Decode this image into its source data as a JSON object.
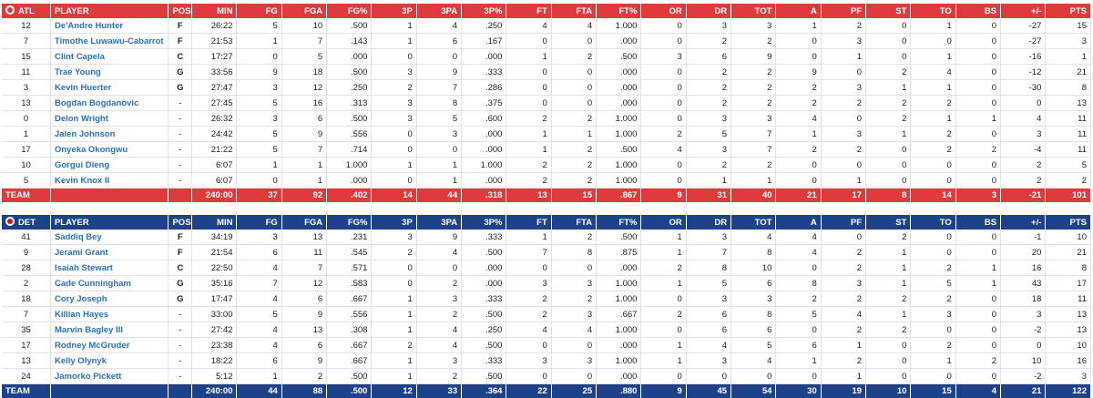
{
  "columns": [
    "PLAYER",
    "POS",
    "MIN",
    "FG",
    "FGA",
    "FG%",
    "3P",
    "3PA",
    "3P%",
    "FT",
    "FTA",
    "FT%",
    "OR",
    "DR",
    "TOT",
    "A",
    "PF",
    "ST",
    "TO",
    "BS",
    "+/-",
    "PTS"
  ],
  "teams": [
    {
      "abbr": "ATL",
      "logo_icon": "hawks-logo-icon",
      "color": "#e03a3e",
      "players": [
        [
          "12",
          "De'Andre Hunter",
          "F",
          "26:22",
          "5",
          "10",
          ".500",
          "1",
          "4",
          ".250",
          "4",
          "4",
          "1.000",
          "0",
          "3",
          "3",
          "1",
          "2",
          "0",
          "1",
          "0",
          "-27",
          "15"
        ],
        [
          "7",
          "Timothe Luwawu-Cabarrot",
          "F",
          "21:53",
          "1",
          "7",
          ".143",
          "1",
          "6",
          ".167",
          "0",
          "0",
          ".000",
          "0",
          "2",
          "2",
          "0",
          "3",
          "0",
          "0",
          "0",
          "-27",
          "3"
        ],
        [
          "15",
          "Clint Capela",
          "C",
          "17:27",
          "0",
          "5",
          ".000",
          "0",
          "0",
          ".000",
          "1",
          "2",
          ".500",
          "3",
          "6",
          "9",
          "0",
          "1",
          "0",
          "1",
          "0",
          "-16",
          "1"
        ],
        [
          "11",
          "Trae Young",
          "G",
          "33:56",
          "9",
          "18",
          ".500",
          "3",
          "9",
          ".333",
          "0",
          "0",
          ".000",
          "0",
          "2",
          "2",
          "9",
          "0",
          "2",
          "4",
          "0",
          "-12",
          "21"
        ],
        [
          "3",
          "Kevin Huerter",
          "G",
          "27:47",
          "3",
          "12",
          ".250",
          "2",
          "7",
          ".286",
          "0",
          "0",
          ".000",
          "0",
          "2",
          "2",
          "2",
          "3",
          "1",
          "1",
          "0",
          "-30",
          "8"
        ],
        [
          "13",
          "Bogdan Bogdanovic",
          "-",
          "27:45",
          "5",
          "16",
          ".313",
          "3",
          "8",
          ".375",
          "0",
          "0",
          ".000",
          "0",
          "2",
          "2",
          "2",
          "2",
          "2",
          "2",
          "0",
          "0",
          "13"
        ],
        [
          "0",
          "Delon Wright",
          "-",
          "26:32",
          "3",
          "6",
          ".500",
          "3",
          "5",
          ".600",
          "2",
          "2",
          "1.000",
          "0",
          "3",
          "3",
          "4",
          "0",
          "2",
          "1",
          "1",
          "4",
          "11"
        ],
        [
          "1",
          "Jalen Johnson",
          "-",
          "24:42",
          "5",
          "9",
          ".556",
          "0",
          "3",
          ".000",
          "1",
          "1",
          "1.000",
          "2",
          "5",
          "7",
          "1",
          "3",
          "1",
          "2",
          "0",
          "3",
          "11"
        ],
        [
          "17",
          "Onyeka Okongwu",
          "-",
          "21:22",
          "5",
          "7",
          ".714",
          "0",
          "0",
          ".000",
          "1",
          "2",
          ".500",
          "4",
          "3",
          "7",
          "2",
          "2",
          "0",
          "2",
          "2",
          "-4",
          "11"
        ],
        [
          "10",
          "Gorgui Dieng",
          "-",
          "6:07",
          "1",
          "1",
          "1.000",
          "1",
          "1",
          "1.000",
          "2",
          "2",
          "1.000",
          "0",
          "2",
          "2",
          "0",
          "0",
          "0",
          "0",
          "0",
          "2",
          "5"
        ],
        [
          "5",
          "Kevin Knox II",
          "-",
          "6:07",
          "0",
          "1",
          ".000",
          "0",
          "1",
          ".000",
          "2",
          "2",
          "1.000",
          "0",
          "1",
          "1",
          "0",
          "1",
          "0",
          "0",
          "0",
          "2",
          "2"
        ]
      ],
      "totals": [
        "TEAM",
        "",
        "",
        "240:00",
        "37",
        "92",
        ".402",
        "14",
        "44",
        ".318",
        "13",
        "15",
        ".867",
        "9",
        "31",
        "40",
        "21",
        "17",
        "8",
        "14",
        "3",
        "-21",
        "101"
      ]
    },
    {
      "abbr": "DET",
      "logo_icon": "pistons-logo-icon",
      "color": "#1d428a",
      "players": [
        [
          "41",
          "Saddiq Bey",
          "F",
          "34:19",
          "3",
          "13",
          ".231",
          "3",
          "9",
          ".333",
          "1",
          "2",
          ".500",
          "1",
          "3",
          "4",
          "4",
          "0",
          "2",
          "0",
          "0",
          "-1",
          "10"
        ],
        [
          "9",
          "Jerami Grant",
          "F",
          "21:54",
          "6",
          "11",
          ".545",
          "2",
          "4",
          ".500",
          "7",
          "8",
          ".875",
          "1",
          "7",
          "8",
          "4",
          "2",
          "1",
          "0",
          "0",
          "20",
          "21"
        ],
        [
          "28",
          "Isaiah Stewart",
          "C",
          "22:50",
          "4",
          "7",
          ".571",
          "0",
          "0",
          ".000",
          "0",
          "0",
          ".000",
          "2",
          "8",
          "10",
          "0",
          "2",
          "1",
          "2",
          "1",
          "16",
          "8"
        ],
        [
          "2",
          "Cade Cunningham",
          "G",
          "35:16",
          "7",
          "12",
          ".583",
          "0",
          "2",
          ".000",
          "3",
          "3",
          "1.000",
          "1",
          "5",
          "6",
          "8",
          "3",
          "1",
          "5",
          "1",
          "43",
          "17"
        ],
        [
          "18",
          "Cory Joseph",
          "G",
          "17:47",
          "4",
          "6",
          ".667",
          "1",
          "3",
          ".333",
          "2",
          "2",
          "1.000",
          "0",
          "3",
          "3",
          "2",
          "2",
          "2",
          "2",
          "0",
          "18",
          "11"
        ],
        [
          "7",
          "Killian Hayes",
          "-",
          "33:00",
          "5",
          "9",
          ".556",
          "1",
          "2",
          ".500",
          "2",
          "3",
          ".667",
          "2",
          "6",
          "8",
          "5",
          "4",
          "1",
          "3",
          "0",
          "3",
          "13"
        ],
        [
          "35",
          "Marvin Bagley III",
          "-",
          "27:42",
          "4",
          "13",
          ".308",
          "1",
          "4",
          ".250",
          "4",
          "4",
          "1.000",
          "0",
          "6",
          "6",
          "0",
          "2",
          "2",
          "0",
          "0",
          "-2",
          "13"
        ],
        [
          "17",
          "Rodney McGruder",
          "-",
          "23:38",
          "4",
          "6",
          ".667",
          "2",
          "4",
          ".500",
          "0",
          "0",
          ".000",
          "1",
          "4",
          "5",
          "6",
          "1",
          "0",
          "2",
          "0",
          "0",
          "10"
        ],
        [
          "13",
          "Kelly Olynyk",
          "-",
          "18:22",
          "6",
          "9",
          ".667",
          "1",
          "3",
          ".333",
          "3",
          "3",
          "1.000",
          "1",
          "3",
          "4",
          "1",
          "2",
          "0",
          "1",
          "2",
          "10",
          "16"
        ],
        [
          "24",
          "Jamorko Pickett",
          "-",
          "5:12",
          "1",
          "2",
          ".500",
          "1",
          "2",
          ".500",
          "0",
          "0",
          ".000",
          "0",
          "0",
          "0",
          "0",
          "1",
          "0",
          "0",
          "0",
          "-2",
          "3"
        ]
      ],
      "totals": [
        "TEAM",
        "",
        "",
        "240:00",
        "44",
        "88",
        ".500",
        "12",
        "33",
        ".364",
        "22",
        "25",
        ".880",
        "9",
        "45",
        "54",
        "30",
        "19",
        "10",
        "15",
        "4",
        "21",
        "122"
      ]
    }
  ]
}
